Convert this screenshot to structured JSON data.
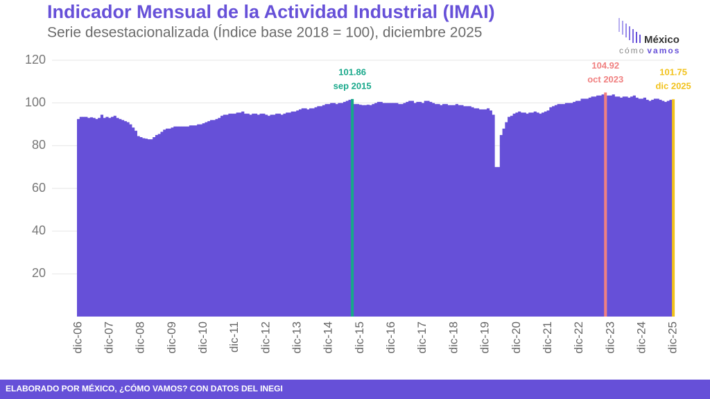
{
  "chart_data": {
    "type": "bar",
    "title": "Indicador Mensual de la Actividad Industrial (IMAI)",
    "subtitle": "Serie desestacionalizada (Índice base 2018 = 100), diciembre 2025",
    "color": "#6650d8",
    "categories": [
      "dic-06",
      null,
      null,
      null,
      null,
      null,
      null,
      null,
      null,
      null,
      null,
      null,
      "dic-07",
      null,
      null,
      null,
      null,
      null,
      null,
      null,
      null,
      null,
      null,
      null,
      "dic-08",
      null,
      null,
      null,
      null,
      null,
      null,
      null,
      null,
      null,
      null,
      null,
      "dic-09",
      null,
      null,
      null,
      null,
      null,
      null,
      null,
      null,
      null,
      null,
      null,
      "dic-10",
      null,
      null,
      null,
      null,
      null,
      null,
      null,
      null,
      null,
      null,
      null,
      "dic-11",
      null,
      null,
      null,
      null,
      null,
      null,
      null,
      null,
      null,
      null,
      null,
      "dic-12",
      null,
      null,
      null,
      null,
      null,
      null,
      null,
      null,
      null,
      null,
      null,
      "dic-13",
      null,
      null,
      null,
      null,
      null,
      null,
      null,
      null,
      null,
      null,
      null,
      "dic-14",
      null,
      null,
      null,
      null,
      null,
      null,
      null,
      null,
      null,
      null,
      null,
      "dic-15",
      null,
      null,
      null,
      null,
      null,
      null,
      null,
      null,
      null,
      null,
      null,
      "dic-16",
      null,
      null,
      null,
      null,
      null,
      null,
      null,
      null,
      null,
      null,
      null,
      "dic-17",
      null,
      null,
      null,
      null,
      null,
      null,
      null,
      null,
      null,
      null,
      null,
      "dic-18",
      null,
      null,
      null,
      null,
      null,
      null,
      null,
      null,
      null,
      null,
      null,
      "dic-19",
      null,
      null,
      null,
      null,
      null,
      null,
      null,
      null,
      null,
      null,
      null,
      "dic-20",
      null,
      null,
      null,
      null,
      null,
      null,
      null,
      null,
      null,
      null,
      null,
      "dic-21",
      null,
      null,
      null,
      null,
      null,
      null,
      null,
      null,
      null,
      null,
      null,
      "dic-22",
      null,
      null,
      null,
      null,
      null,
      null,
      null,
      null,
      null,
      null,
      null,
      "dic-23",
      null,
      null,
      null,
      null,
      null,
      null,
      null,
      null,
      null,
      null,
      null,
      "dic-24",
      null,
      null,
      null,
      null,
      null,
      null,
      null,
      null,
      null,
      null,
      null,
      "dic-25"
    ],
    "values": [
      92.5,
      93.5,
      93.5,
      93.5,
      93,
      93.3,
      93,
      92.5,
      93,
      94.5,
      93,
      93.5,
      93,
      93.5,
      94,
      93,
      92.5,
      92,
      91.5,
      91,
      90,
      88.5,
      87,
      84.5,
      84,
      83.5,
      83.3,
      83,
      83,
      84,
      85,
      85.5,
      86.5,
      87.5,
      88,
      88,
      88.5,
      89,
      89,
      89,
      89,
      89,
      89,
      89.5,
      89.5,
      89.5,
      90,
      90,
      90.5,
      91,
      91.5,
      92,
      92,
      92.5,
      93,
      94,
      94.5,
      94.5,
      95,
      95,
      95,
      95.5,
      95.5,
      96,
      95,
      95,
      94.5,
      95,
      95,
      94.5,
      95,
      95,
      94.5,
      94,
      94.5,
      94.5,
      95,
      95,
      94.5,
      95,
      95.5,
      95.5,
      96,
      96,
      96.5,
      97,
      97.5,
      97.5,
      97,
      97.5,
      97.5,
      98,
      98.5,
      98.5,
      99,
      99.5,
      99.5,
      100,
      100,
      99.5,
      100,
      100,
      100.5,
      101,
      101.5,
      101.86,
      99.5,
      99.5,
      99.2,
      99,
      99,
      99.2,
      99,
      99.5,
      100,
      100.5,
      100.5,
      100,
      100,
      100,
      100,
      100,
      100,
      99.5,
      99.5,
      100,
      100.5,
      101,
      101,
      100,
      100.5,
      100.5,
      100,
      101,
      101,
      100.5,
      100,
      99.5,
      99.5,
      99,
      99.5,
      99.5,
      99,
      99,
      99,
      99.5,
      99,
      99,
      98.5,
      98.5,
      98.5,
      98,
      97.5,
      97.5,
      97,
      97,
      97,
      97.5,
      96.5,
      94.5,
      70,
      70,
      85,
      88,
      91,
      93.5,
      94,
      95,
      95.5,
      96,
      95.5,
      95.5,
      95,
      95.5,
      95.5,
      96,
      95.5,
      95,
      95.5,
      96,
      96.5,
      98,
      98.5,
      99,
      99.5,
      99.5,
      99.5,
      100,
      100,
      100,
      100.5,
      101,
      101,
      102,
      102,
      102,
      102.5,
      103,
      103,
      103.5,
      103.5,
      104,
      104.92,
      103.5,
      103.5,
      104,
      103,
      103,
      102.5,
      103,
      103,
      102.5,
      103,
      103.5,
      102.5,
      102,
      102,
      102.5,
      101.5,
      101,
      101.5,
      102,
      102,
      101.5,
      101,
      100.5,
      101,
      101.5,
      101.75
    ],
    "highlights": [
      {
        "index": 105,
        "label": "sep 2015",
        "color": "#17a88a"
      },
      {
        "index": 202,
        "label": "oct 2023",
        "color": "#f08080"
      },
      {
        "index": 228,
        "label": "dic 2025",
        "color": "#f2c21b"
      }
    ],
    "ylim": [
      0,
      120
    ],
    "yticks": [
      20,
      40,
      60,
      80,
      100,
      120
    ],
    "grid": true
  },
  "logo": {
    "name": "México",
    "word1": "cómo",
    "word2": "vamos"
  },
  "footer": "ELABORADO POR MÉXICO, ¿CÓMO VAMOS? CON DATOS DEL INEGI"
}
